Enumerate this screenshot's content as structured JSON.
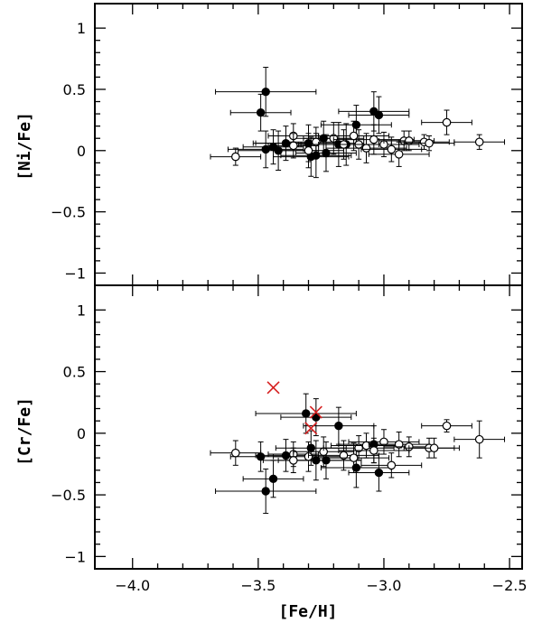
{
  "chart_data": [
    {
      "type": "scatter",
      "panel": "top",
      "title": "",
      "xlabel": "[Fe/H]",
      "ylabel": "[Ni/Fe]",
      "xlim": [
        -4.15,
        -2.45
      ],
      "ylim": [
        -1.1,
        1.2
      ],
      "x_ticks": [
        -4.0,
        -3.5,
        -3.0,
        -2.5
      ],
      "x_tick_labels": [
        "−4.0",
        "−3.5",
        "−3.0",
        "−2.5"
      ],
      "y_ticks": [
        -1,
        -0.5,
        0,
        0.5,
        1
      ],
      "y_tick_labels": [
        "−1",
        "−0.5",
        "0",
        "0.5",
        "1"
      ],
      "grid": false,
      "series": [
        {
          "marker": "filled-circle",
          "color": "#000000",
          "points": [
            {
              "x": -3.47,
              "y": 0.48,
              "xerr": 0.2,
              "yerr": 0.2
            },
            {
              "x": -3.49,
              "y": 0.31,
              "xerr": 0.12,
              "yerr": 0.15
            },
            {
              "x": -3.47,
              "y": 0.01,
              "xerr": 0.15,
              "yerr": 0.15
            },
            {
              "x": -3.44,
              "y": 0.03,
              "xerr": 0.12,
              "yerr": 0.14
            },
            {
              "x": -3.42,
              "y": 0.0,
              "xerr": 0.16,
              "yerr": 0.16
            },
            {
              "x": -3.39,
              "y": 0.06,
              "xerr": 0.12,
              "yerr": 0.14
            },
            {
              "x": -3.3,
              "y": 0.06,
              "xerr": 0.22,
              "yerr": 0.15
            },
            {
              "x": -3.29,
              "y": -0.05,
              "xerr": 0.15,
              "yerr": 0.16
            },
            {
              "x": -3.27,
              "y": -0.04,
              "xerr": 0.14,
              "yerr": 0.18
            },
            {
              "x": -3.24,
              "y": 0.1,
              "xerr": 0.12,
              "yerr": 0.14
            },
            {
              "x": -3.23,
              "y": -0.02,
              "xerr": 0.12,
              "yerr": 0.15
            },
            {
              "x": -3.18,
              "y": 0.05,
              "xerr": 0.16,
              "yerr": 0.18
            },
            {
              "x": -3.15,
              "y": 0.05,
              "xerr": 0.18,
              "yerr": 0.17
            },
            {
              "x": -3.11,
              "y": 0.21,
              "xerr": 0.14,
              "yerr": 0.16
            },
            {
              "x": -3.04,
              "y": 0.32,
              "xerr": 0.14,
              "yerr": 0.16
            },
            {
              "x": -3.02,
              "y": 0.29,
              "xerr": 0.12,
              "yerr": 0.15
            }
          ]
        },
        {
          "marker": "open-circle",
          "color": "#000000",
          "points": [
            {
              "x": -3.59,
              "y": -0.05,
              "xerr": 0.1,
              "yerr": 0.07
            },
            {
              "x": -3.36,
              "y": 0.12,
              "xerr": 0.1,
              "yerr": 0.1
            },
            {
              "x": -3.36,
              "y": 0.04,
              "xerr": 0.1,
              "yerr": 0.1
            },
            {
              "x": -3.3,
              "y": 0.0,
              "xerr": 0.14,
              "yerr": 0.14
            },
            {
              "x": -3.27,
              "y": 0.07,
              "xerr": 0.12,
              "yerr": 0.12
            },
            {
              "x": -3.2,
              "y": 0.1,
              "xerr": 0.12,
              "yerr": 0.13
            },
            {
              "x": -3.16,
              "y": 0.05,
              "xerr": 0.15,
              "yerr": 0.12
            },
            {
              "x": -3.12,
              "y": 0.12,
              "xerr": 0.14,
              "yerr": 0.12
            },
            {
              "x": -3.1,
              "y": 0.05,
              "xerr": 0.16,
              "yerr": 0.12
            },
            {
              "x": -3.07,
              "y": 0.02,
              "xerr": 0.16,
              "yerr": 0.12
            },
            {
              "x": -3.04,
              "y": 0.09,
              "xerr": 0.16,
              "yerr": 0.12
            },
            {
              "x": -3.0,
              "y": 0.05,
              "xerr": 0.14,
              "yerr": 0.1
            },
            {
              "x": -2.97,
              "y": 0.01,
              "xerr": 0.12,
              "yerr": 0.1
            },
            {
              "x": -2.94,
              "y": -0.03,
              "xerr": 0.12,
              "yerr": 0.1
            },
            {
              "x": -2.92,
              "y": 0.08,
              "xerr": 0.1,
              "yerr": 0.08
            },
            {
              "x": -2.9,
              "y": 0.08,
              "xerr": 0.1,
              "yerr": 0.08
            },
            {
              "x": -2.84,
              "y": 0.07,
              "xerr": 0.1,
              "yerr": 0.06
            },
            {
              "x": -2.82,
              "y": 0.06,
              "xerr": 0.1,
              "yerr": 0.06
            },
            {
              "x": -2.75,
              "y": 0.23,
              "xerr": 0.1,
              "yerr": 0.1
            },
            {
              "x": -2.62,
              "y": 0.07,
              "xerr": 0.1,
              "yerr": 0.06
            }
          ]
        }
      ]
    },
    {
      "type": "scatter",
      "panel": "bottom",
      "title": "",
      "xlabel": "[Fe/H]",
      "ylabel": "[Cr/Fe]",
      "xlim": [
        -4.15,
        -2.45
      ],
      "ylim": [
        -1.1,
        1.2
      ],
      "x_ticks": [
        -4.0,
        -3.5,
        -3.0,
        -2.5
      ],
      "x_tick_labels": [
        "−4.0",
        "−3.5",
        "−3.0",
        "−2.5"
      ],
      "y_ticks": [
        -1,
        -0.5,
        0,
        0.5,
        1
      ],
      "y_tick_labels": [
        "−1",
        "−0.5",
        "0",
        "0.5",
        "1"
      ],
      "grid": false,
      "series": [
        {
          "marker": "filled-circle",
          "color": "#000000",
          "points": [
            {
              "x": -3.49,
              "y": -0.19,
              "xerr": 0.12,
              "yerr": 0.12
            },
            {
              "x": -3.47,
              "y": -0.47,
              "xerr": 0.2,
              "yerr": 0.18
            },
            {
              "x": -3.44,
              "y": -0.37,
              "xerr": 0.12,
              "yerr": 0.15
            },
            {
              "x": -3.39,
              "y": -0.18,
              "xerr": 0.12,
              "yerr": 0.13
            },
            {
              "x": -3.31,
              "y": 0.16,
              "xerr": 0.2,
              "yerr": 0.16
            },
            {
              "x": -3.29,
              "y": -0.12,
              "xerr": 0.14,
              "yerr": 0.14
            },
            {
              "x": -3.27,
              "y": 0.13,
              "xerr": 0.14,
              "yerr": 0.15
            },
            {
              "x": -3.27,
              "y": -0.22,
              "xerr": 0.15,
              "yerr": 0.16
            },
            {
              "x": -3.23,
              "y": -0.22,
              "xerr": 0.14,
              "yerr": 0.15
            },
            {
              "x": -3.18,
              "y": 0.06,
              "xerr": 0.14,
              "yerr": 0.15
            },
            {
              "x": -3.11,
              "y": -0.28,
              "xerr": 0.14,
              "yerr": 0.16
            },
            {
              "x": -3.04,
              "y": -0.09,
              "xerr": 0.14,
              "yerr": 0.15
            },
            {
              "x": -3.02,
              "y": -0.32,
              "xerr": 0.12,
              "yerr": 0.15
            }
          ]
        },
        {
          "marker": "open-circle",
          "color": "#000000",
          "points": [
            {
              "x": -3.59,
              "y": -0.16,
              "xerr": 0.1,
              "yerr": 0.1
            },
            {
              "x": -3.36,
              "y": -0.17,
              "xerr": 0.1,
              "yerr": 0.1
            },
            {
              "x": -3.36,
              "y": -0.22,
              "xerr": 0.12,
              "yerr": 0.1
            },
            {
              "x": -3.3,
              "y": -0.19,
              "xerr": 0.14,
              "yerr": 0.12
            },
            {
              "x": -3.24,
              "y": -0.15,
              "xerr": 0.12,
              "yerr": 0.12
            },
            {
              "x": -3.16,
              "y": -0.18,
              "xerr": 0.14,
              "yerr": 0.12
            },
            {
              "x": -3.12,
              "y": -0.2,
              "xerr": 0.14,
              "yerr": 0.12
            },
            {
              "x": -3.1,
              "y": -0.12,
              "xerr": 0.14,
              "yerr": 0.1
            },
            {
              "x": -3.07,
              "y": -0.1,
              "xerr": 0.14,
              "yerr": 0.1
            },
            {
              "x": -3.04,
              "y": -0.14,
              "xerr": 0.14,
              "yerr": 0.1
            },
            {
              "x": -3.0,
              "y": -0.07,
              "xerr": 0.14,
              "yerr": 0.1
            },
            {
              "x": -2.97,
              "y": -0.26,
              "xerr": 0.12,
              "yerr": 0.1
            },
            {
              "x": -2.94,
              "y": -0.09,
              "xerr": 0.12,
              "yerr": 0.1
            },
            {
              "x": -2.9,
              "y": -0.11,
              "xerr": 0.1,
              "yerr": 0.08
            },
            {
              "x": -2.82,
              "y": -0.12,
              "xerr": 0.1,
              "yerr": 0.08
            },
            {
              "x": -2.8,
              "y": -0.12,
              "xerr": 0.1,
              "yerr": 0.08
            },
            {
              "x": -2.75,
              "y": 0.06,
              "xerr": 0.1,
              "yerr": 0.05
            },
            {
              "x": -2.62,
              "y": -0.05,
              "xerr": 0.1,
              "yerr": 0.15
            }
          ]
        },
        {
          "marker": "red-cross",
          "color": "#d62020",
          "points": [
            {
              "x": -3.44,
              "y": 0.37
            },
            {
              "x": -3.27,
              "y": 0.17
            },
            {
              "x": -3.29,
              "y": 0.04
            }
          ]
        }
      ]
    }
  ]
}
